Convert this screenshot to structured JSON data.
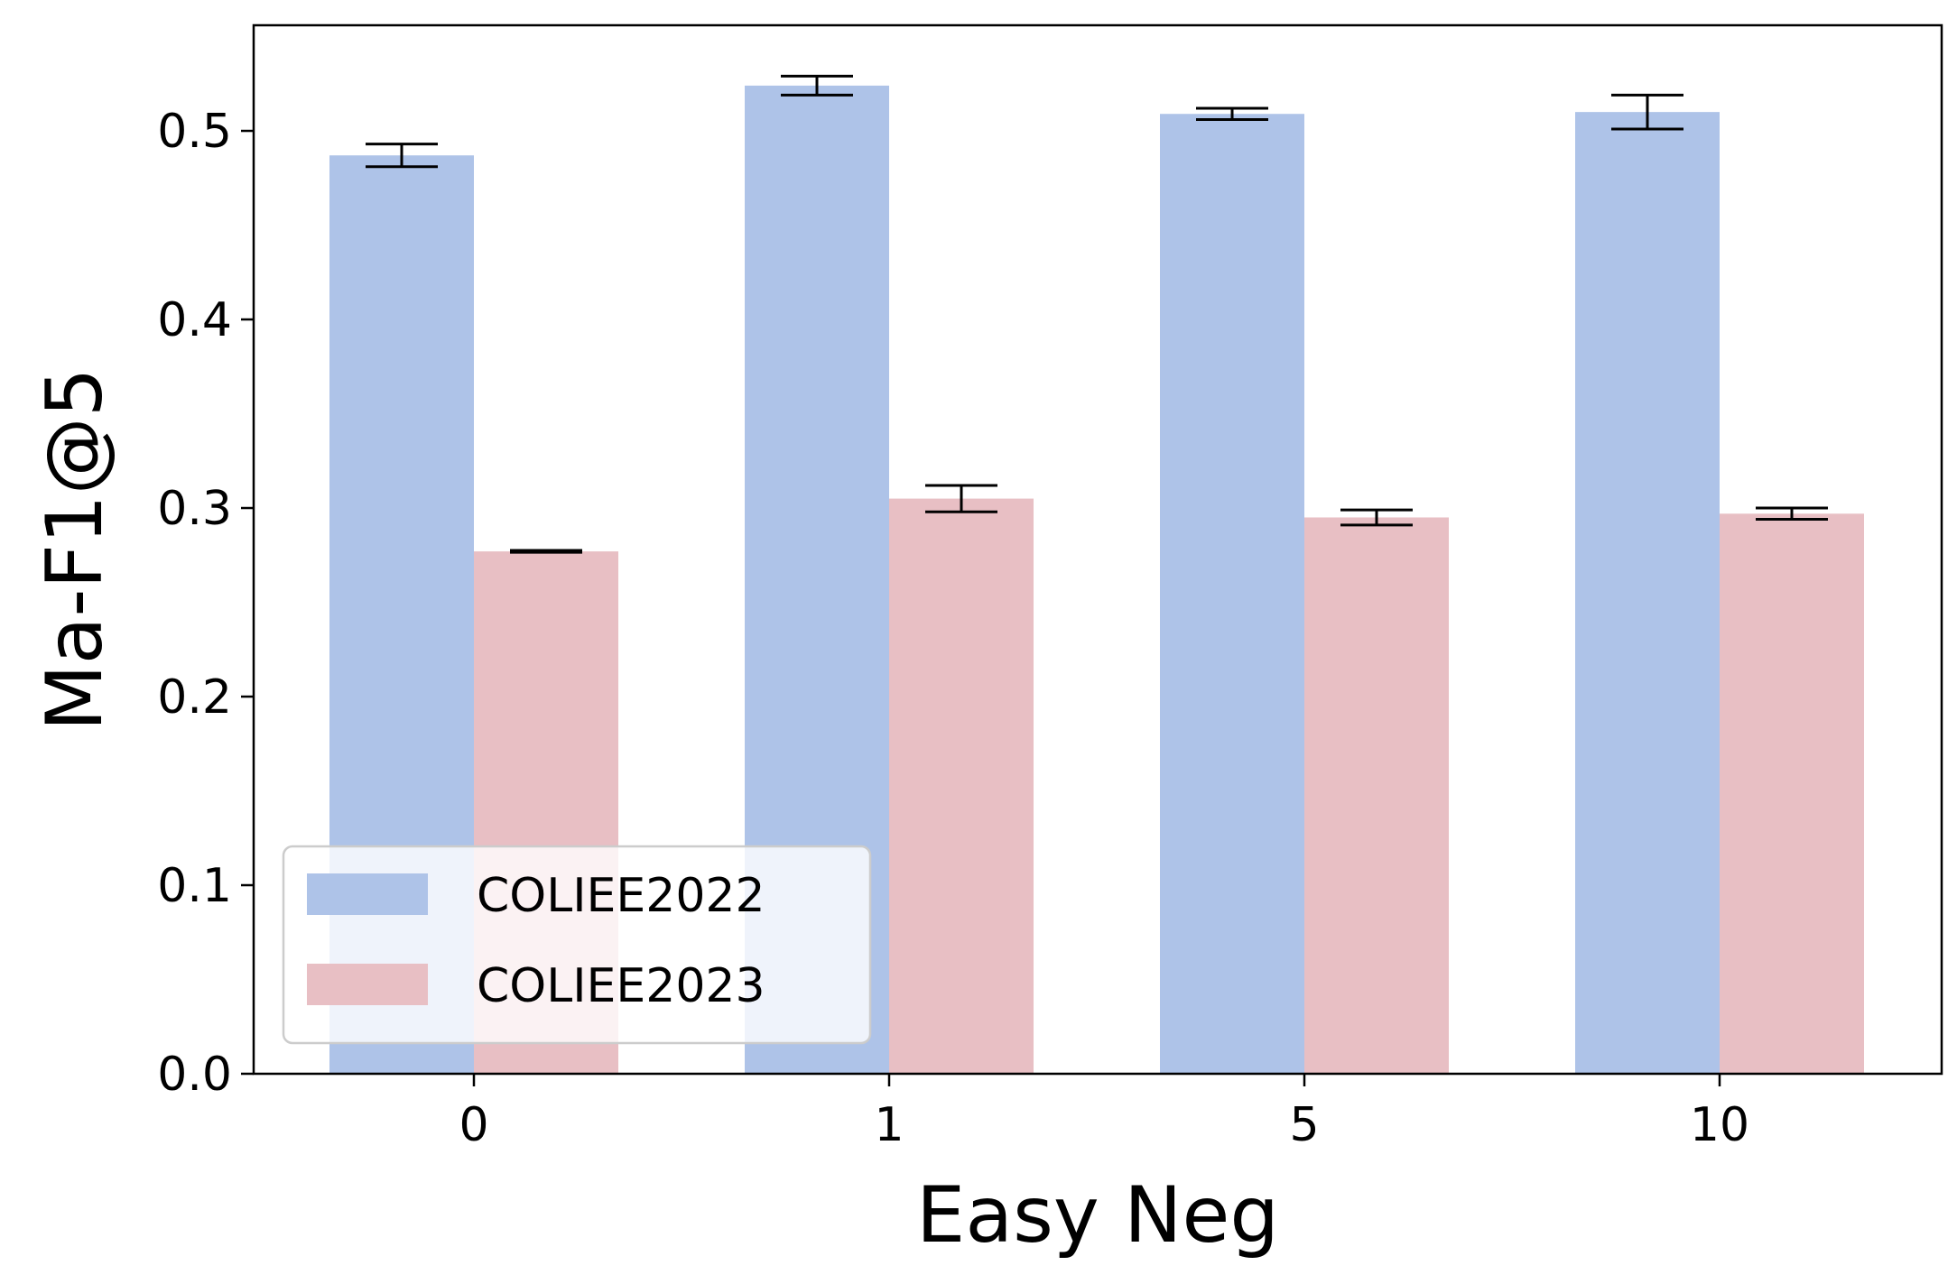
{
  "chart_data": {
    "type": "bar",
    "xlabel": "Easy Neg",
    "ylabel": "Ma-F1@5",
    "categories": [
      "0",
      "1",
      "5",
      "10"
    ],
    "series": [
      {
        "name": "COLIEE2022",
        "color": "#aec3e8",
        "values": [
          0.487,
          0.524,
          0.509,
          0.51
        ],
        "errors": [
          0.006,
          0.005,
          0.003,
          0.009
        ]
      },
      {
        "name": "COLIEE2023",
        "color": "#e8bfc4",
        "values": [
          0.277,
          0.305,
          0.295,
          0.297
        ],
        "errors": [
          0.0005,
          0.007,
          0.004,
          0.003
        ]
      }
    ],
    "ylim": [
      0.0,
      0.556
    ],
    "yticks": [
      0.0,
      0.1,
      0.2,
      0.3,
      0.4,
      0.5
    ],
    "ytick_labels": [
      "0.0",
      "0.1",
      "0.2",
      "0.3",
      "0.4",
      "0.5"
    ],
    "legend_position": "lower-left",
    "grid": false
  }
}
